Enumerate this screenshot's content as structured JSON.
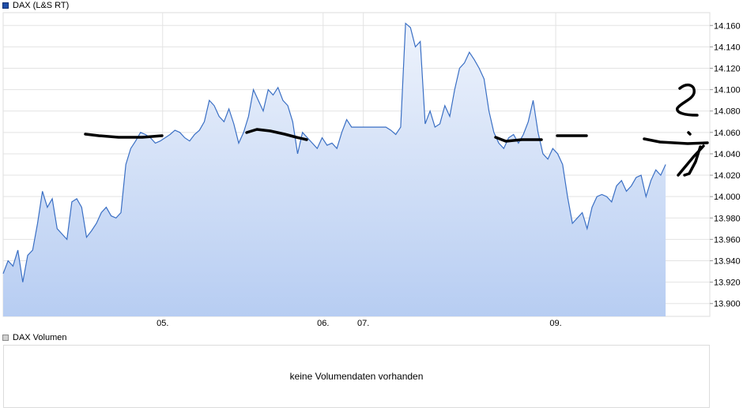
{
  "price_legend": {
    "label": "DAX (L&S RT)",
    "color": "#1f4ea8"
  },
  "volume_legend": {
    "label": "DAX Volumen"
  },
  "volume_panel": {
    "message": "keine Volumendaten vorhanden"
  },
  "chart_data": {
    "type": "area",
    "series": [
      {
        "name": "DAX (L&S RT)",
        "line_color": "#3a6fc4",
        "fill_top": "#eef3fc",
        "fill_bottom": "#b7cdf2",
        "points": [
          [
            0,
            13928
          ],
          [
            1,
            13940
          ],
          [
            2,
            13935
          ],
          [
            3,
            13950
          ],
          [
            4,
            13920
          ],
          [
            5,
            13945
          ],
          [
            6,
            13950
          ],
          [
            7,
            13975
          ],
          [
            8,
            14005
          ],
          [
            9,
            13990
          ],
          [
            10,
            13998
          ],
          [
            11,
            13970
          ],
          [
            12,
            13965
          ],
          [
            13,
            13960
          ],
          [
            14,
            13995
          ],
          [
            15,
            13998
          ],
          [
            16,
            13990
          ],
          [
            17,
            13962
          ],
          [
            18,
            13968
          ],
          [
            19,
            13975
          ],
          [
            20,
            13985
          ],
          [
            21,
            13990
          ],
          [
            22,
            13982
          ],
          [
            23,
            13980
          ],
          [
            24,
            13985
          ],
          [
            25,
            14030
          ],
          [
            26,
            14045
          ],
          [
            27,
            14052
          ],
          [
            28,
            14060
          ],
          [
            29,
            14058
          ],
          [
            30,
            14055
          ],
          [
            31,
            14050
          ],
          [
            32,
            14052
          ],
          [
            33,
            14055
          ],
          [
            34,
            14058
          ],
          [
            35,
            14062
          ],
          [
            36,
            14060
          ],
          [
            37,
            14055
          ],
          [
            38,
            14052
          ],
          [
            39,
            14058
          ],
          [
            40,
            14062
          ],
          [
            41,
            14070
          ],
          [
            42,
            14090
          ],
          [
            43,
            14085
          ],
          [
            44,
            14075
          ],
          [
            45,
            14070
          ],
          [
            46,
            14082
          ],
          [
            47,
            14068
          ],
          [
            48,
            14050
          ],
          [
            49,
            14060
          ],
          [
            50,
            14075
          ],
          [
            51,
            14100
          ],
          [
            52,
            14090
          ],
          [
            53,
            14080
          ],
          [
            54,
            14100
          ],
          [
            55,
            14095
          ],
          [
            56,
            14102
          ],
          [
            57,
            14090
          ],
          [
            58,
            14085
          ],
          [
            59,
            14070
          ],
          [
            60,
            14040
          ],
          [
            61,
            14060
          ],
          [
            62,
            14055
          ],
          [
            63,
            14050
          ],
          [
            64,
            14045
          ],
          [
            65,
            14055
          ],
          [
            66,
            14048
          ],
          [
            67,
            14050
          ],
          [
            68,
            14045
          ],
          [
            69,
            14060
          ],
          [
            70,
            14072
          ],
          [
            71,
            14065
          ],
          [
            72,
            14065
          ],
          [
            73,
            14065
          ],
          [
            74,
            14065
          ],
          [
            75,
            14065
          ],
          [
            76,
            14065
          ],
          [
            77,
            14065
          ],
          [
            78,
            14065
          ],
          [
            79,
            14062
          ],
          [
            80,
            14058
          ],
          [
            81,
            14065
          ],
          [
            82,
            14162
          ],
          [
            83,
            14158
          ],
          [
            84,
            14140
          ],
          [
            85,
            14145
          ],
          [
            86,
            14068
          ],
          [
            87,
            14080
          ],
          [
            88,
            14065
          ],
          [
            89,
            14068
          ],
          [
            90,
            14085
          ],
          [
            91,
            14075
          ],
          [
            92,
            14100
          ],
          [
            93,
            14120
          ],
          [
            94,
            14125
          ],
          [
            95,
            14135
          ],
          [
            96,
            14128
          ],
          [
            97,
            14120
          ],
          [
            98,
            14110
          ],
          [
            99,
            14080
          ],
          [
            100,
            14060
          ],
          [
            101,
            14050
          ],
          [
            102,
            14045
          ],
          [
            103,
            14055
          ],
          [
            104,
            14058
          ],
          [
            105,
            14050
          ],
          [
            106,
            14058
          ],
          [
            107,
            14070
          ],
          [
            108,
            14090
          ],
          [
            109,
            14060
          ],
          [
            110,
            14040
          ],
          [
            111,
            14035
          ],
          [
            112,
            14045
          ],
          [
            113,
            14040
          ],
          [
            114,
            14030
          ],
          [
            115,
            14000
          ],
          [
            116,
            13975
          ],
          [
            117,
            13980
          ],
          [
            118,
            13985
          ],
          [
            119,
            13970
          ],
          [
            120,
            13990
          ],
          [
            121,
            14000
          ],
          [
            122,
            14002
          ],
          [
            123,
            14000
          ],
          [
            124,
            13995
          ],
          [
            125,
            14010
          ],
          [
            126,
            14015
          ],
          [
            127,
            14005
          ],
          [
            128,
            14010
          ],
          [
            129,
            14018
          ],
          [
            130,
            14020
          ],
          [
            131,
            14000
          ],
          [
            132,
            14015
          ],
          [
            133,
            14025
          ],
          [
            134,
            14020
          ],
          [
            135,
            14030
          ]
        ]
      }
    ],
    "x_range": [
      0,
      144
    ],
    "x_tick_labels": [
      {
        "label": "05.",
        "x": 32.5
      },
      {
        "label": "06.",
        "x": 65.2
      },
      {
        "label": "07.",
        "x": 73.4
      },
      {
        "label": "09.",
        "x": 112.6
      }
    ],
    "ylim": [
      13888,
      14172
    ],
    "y_ticks": [
      13900,
      13920,
      13940,
      13960,
      13980,
      14000,
      14020,
      14040,
      14060,
      14080,
      14100,
      14120,
      14140,
      14160
    ],
    "y_tick_labels": [
      "13.900",
      "13.920",
      "13.940",
      "13.960",
      "13.980",
      "14.000",
      "14.020",
      "14.040",
      "14.060",
      "14.080",
      "14.100",
      "14.120",
      "14.140",
      "14.160"
    ],
    "y_axis_side": "right",
    "grid": true,
    "legend_position": "top-left",
    "annotation_color": "#000000"
  }
}
